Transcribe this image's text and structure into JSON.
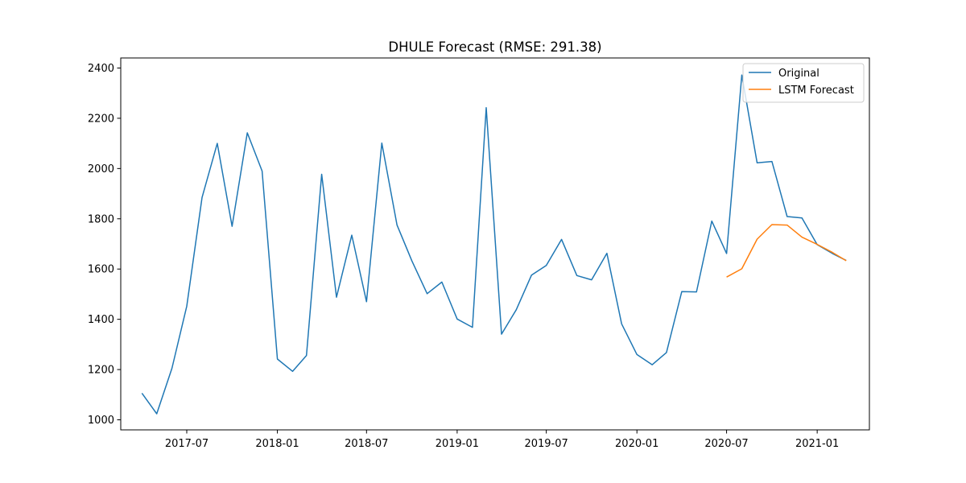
{
  "chart_data": {
    "type": "line",
    "title": "DHULE Forecast (RMSE: 291.38)",
    "xlabel": "",
    "ylabel": "",
    "xlim": [
      "2017-02-17",
      "2021-04-17"
    ],
    "ylim": [
      960,
      2440
    ],
    "x_ticks": [
      "2017-07",
      "2018-01",
      "2018-07",
      "2019-01",
      "2019-07",
      "2020-01",
      "2020-07",
      "2021-01"
    ],
    "y_ticks": [
      1000,
      1200,
      1400,
      1600,
      1800,
      2000,
      2200,
      2400
    ],
    "grid": false,
    "legend_position": "upper right",
    "series": [
      {
        "name": "Original",
        "color": "#1f77b4",
        "points": [
          [
            "2017-04-01",
            1106
          ],
          [
            "2017-05-01",
            1024
          ],
          [
            "2017-06-01",
            1205
          ],
          [
            "2017-07-01",
            1452
          ],
          [
            "2017-08-01",
            1885
          ],
          [
            "2017-09-01",
            2100
          ],
          [
            "2017-10-01",
            1770
          ],
          [
            "2017-11-01",
            2142
          ],
          [
            "2017-12-01",
            1990
          ],
          [
            "2018-01-01",
            1242
          ],
          [
            "2018-02-01",
            1193
          ],
          [
            "2018-03-01",
            1256
          ],
          [
            "2018-04-01",
            1977
          ],
          [
            "2018-05-01",
            1488
          ],
          [
            "2018-06-01",
            1735
          ],
          [
            "2018-07-01",
            1470
          ],
          [
            "2018-08-01",
            2101
          ],
          [
            "2018-09-01",
            1775
          ],
          [
            "2018-10-01",
            1633
          ],
          [
            "2018-11-01",
            1502
          ],
          [
            "2018-12-01",
            1548
          ],
          [
            "2019-01-01",
            1401
          ],
          [
            "2019-02-01",
            1368
          ],
          [
            "2019-03-01",
            2242
          ],
          [
            "2019-04-01",
            1341
          ],
          [
            "2019-05-01",
            1438
          ],
          [
            "2019-06-01",
            1576
          ],
          [
            "2019-07-01",
            1614
          ],
          [
            "2019-08-01",
            1718
          ],
          [
            "2019-09-01",
            1574
          ],
          [
            "2019-10-01",
            1557
          ],
          [
            "2019-11-01",
            1663
          ],
          [
            "2019-12-01",
            1382
          ],
          [
            "2020-01-01",
            1260
          ],
          [
            "2020-02-01",
            1219
          ],
          [
            "2020-03-01",
            1268
          ],
          [
            "2020-04-01",
            1510
          ],
          [
            "2020-05-01",
            1509
          ],
          [
            "2020-06-01",
            1791
          ],
          [
            "2020-07-01",
            1662
          ],
          [
            "2020-08-01",
            2372
          ],
          [
            "2020-09-01",
            2023
          ],
          [
            "2020-10-01",
            2028
          ],
          [
            "2020-11-01",
            1809
          ],
          [
            "2020-12-01",
            1803
          ],
          [
            "2021-01-01",
            1697
          ],
          [
            "2021-02-01",
            1662
          ],
          [
            "2021-03-01",
            1634
          ]
        ]
      },
      {
        "name": "LSTM Forecast",
        "color": "#ff7f0e",
        "points": [
          [
            "2020-07-01",
            1568
          ],
          [
            "2020-08-01",
            1601
          ],
          [
            "2020-09-01",
            1719
          ],
          [
            "2020-10-01",
            1777
          ],
          [
            "2020-11-01",
            1775
          ],
          [
            "2020-12-01",
            1727
          ],
          [
            "2021-01-01",
            1698
          ],
          [
            "2021-02-01",
            1666
          ],
          [
            "2021-03-01",
            1633
          ]
        ]
      }
    ]
  }
}
